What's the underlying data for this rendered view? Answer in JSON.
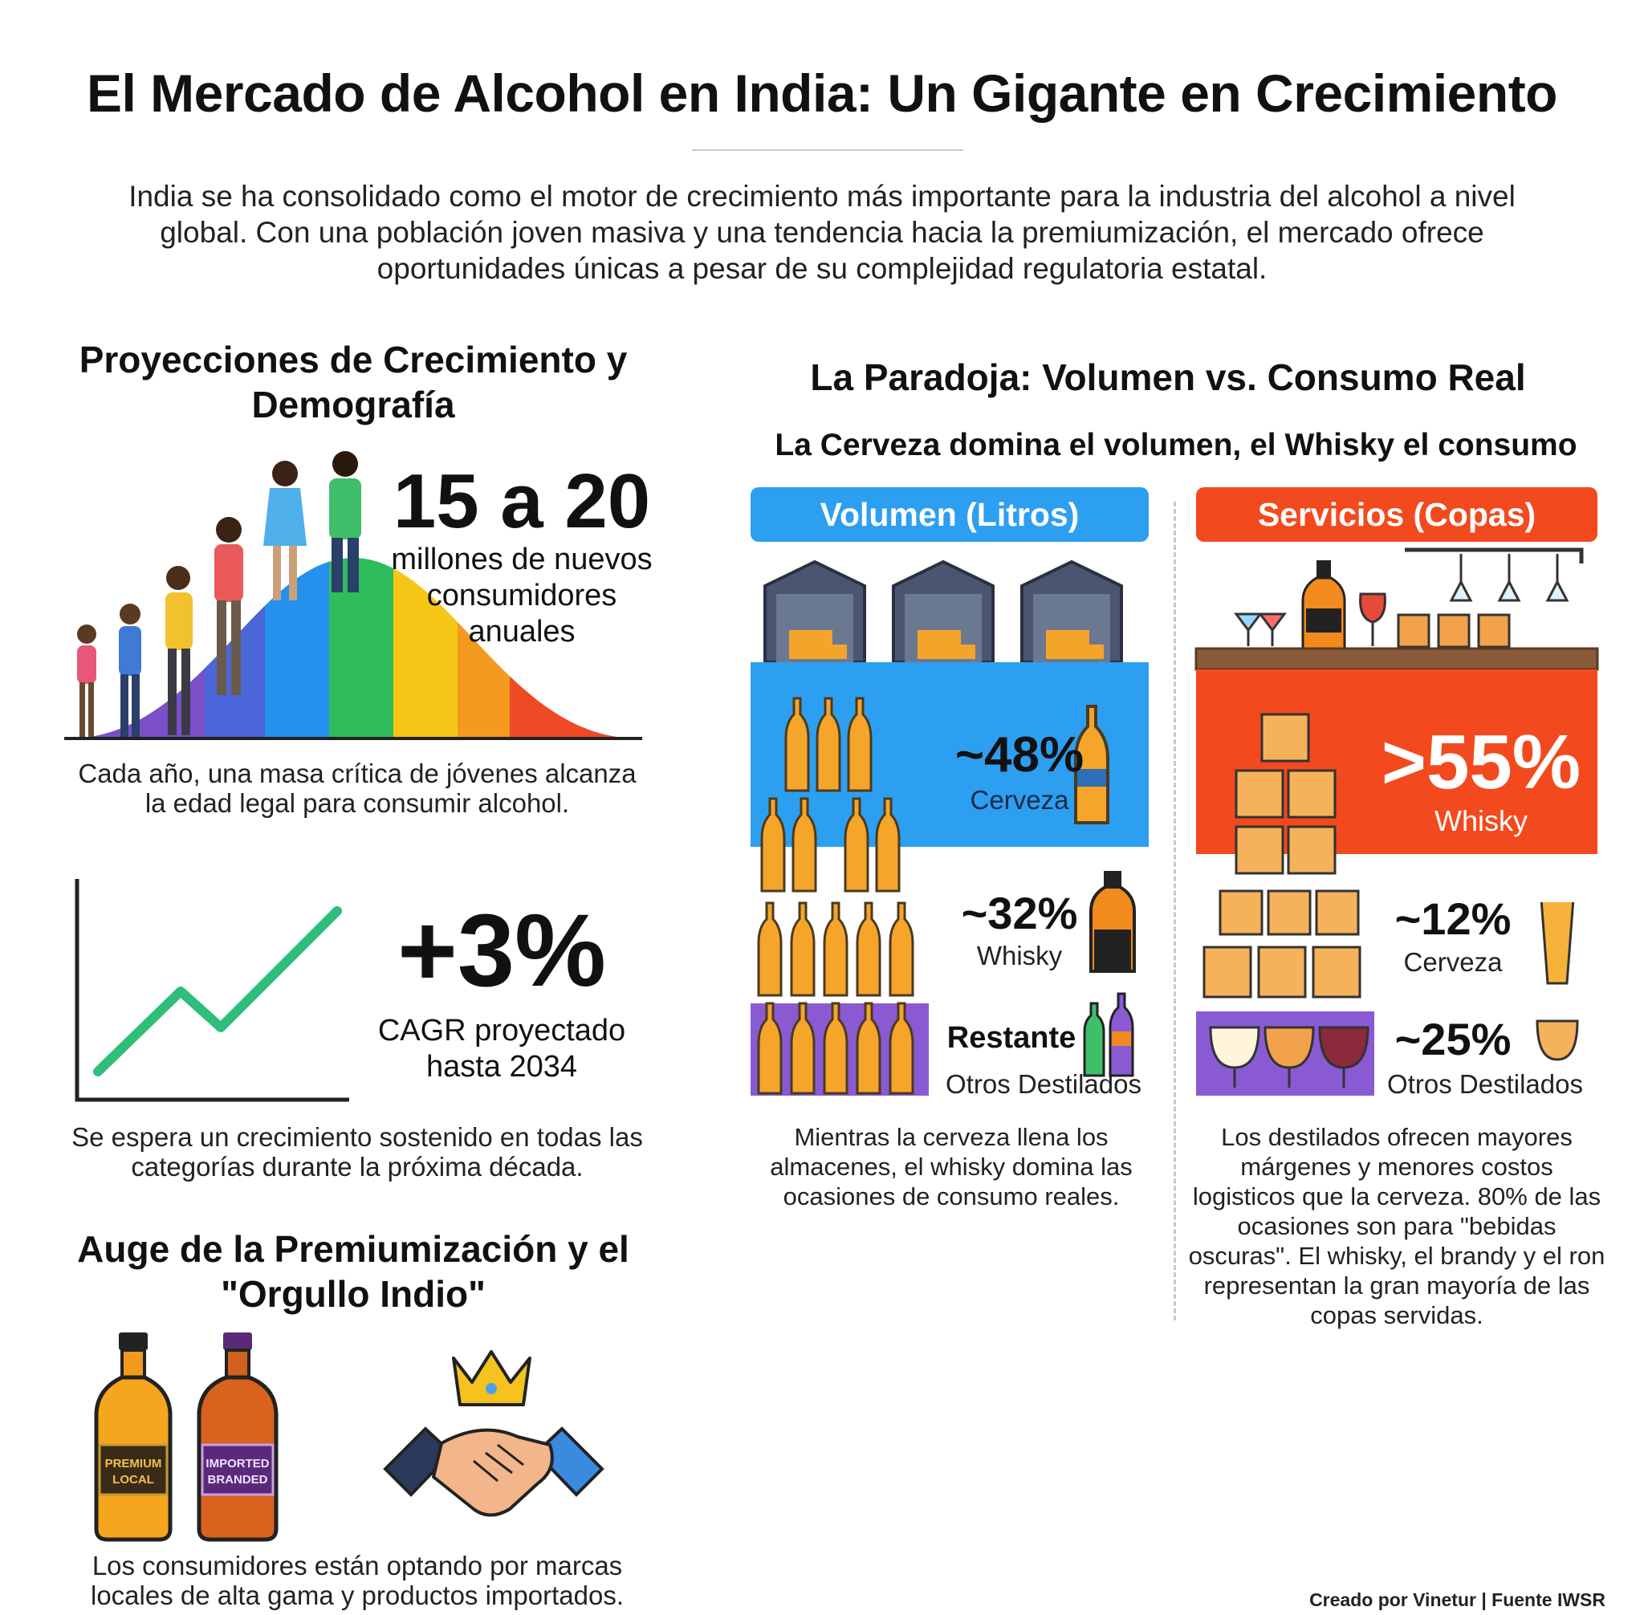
{
  "header": {
    "title": "El Mercado de Alcohol en India: Un Gigante en Crecimiento",
    "intro": "India se ha consolidado como el motor de crecimiento más importante para la industria del alcohol a nivel global. Con una población joven masiva y una tendencia hacia la premiumización, el mercado ofrece oportunidades únicas a pesar de su complejidad regulatoria estatal."
  },
  "growth": {
    "heading": "Proyecciones de Crecimiento y Demografía",
    "consumers_value": "15 a 20",
    "consumers_label": "millones de nuevos consumidores anuales",
    "consumers_caption": "Cada año, una masa crítica de jóvenes alcanza la edad legal para consumir alcohol.",
    "cagr_value": "+3%",
    "cagr_label": "CAGR proyectado hasta 2034",
    "cagr_caption": "Se espera un crecimiento sostenido en todas las categorías durante la próxima década."
  },
  "premium": {
    "heading": "Auge de la Premiumización y el \"Orgullo Indio\"",
    "bottle1_label_line1": "PREMIUM",
    "bottle1_label_line2": "LOCAL",
    "bottle2_label_line1": "IMPORTED",
    "bottle2_label_line2": "BRANDED",
    "caption": "Los consumidores están optando por marcas locales de alta gama y productos importados."
  },
  "paradox": {
    "heading": "La Paradoja: Volumen vs. Consumo Real",
    "subheading": "La Cerveza domina el volumen, el Whisky el consumo",
    "volume": {
      "banner": "Volumen (Litros)",
      "color": "#2d9ff0",
      "beer_pct": "~48%",
      "beer_label": "Cerveza",
      "whisky_pct": "~32%",
      "whisky_label": "Whisky",
      "rest_pct": "Restante",
      "rest_label": "Otros Destilados",
      "caption": "Mientras la cerveza llena los almacenes, el whisky domina las ocasiones de consumo reales."
    },
    "servings": {
      "banner": "Servicios (Copas)",
      "color": "#f24a1e",
      "whisky_pct": ">55%",
      "whisky_label": "Whisky",
      "beer_pct": "~12%",
      "beer_label": "Cerveza",
      "rest_pct": "~25%",
      "rest_label": "Otros Destilados",
      "caption": "Los destilados ofrecen mayores márgenes y menores costos logisticos que la cerveza. 80% de las ocasiones son para \"bebidas oscuras\". El whisky, el brandy y el ron representan la gran mayoría de las copas servidas."
    }
  },
  "footer": {
    "credit": "Creado por Vinetur | Fuente IWSR"
  }
}
